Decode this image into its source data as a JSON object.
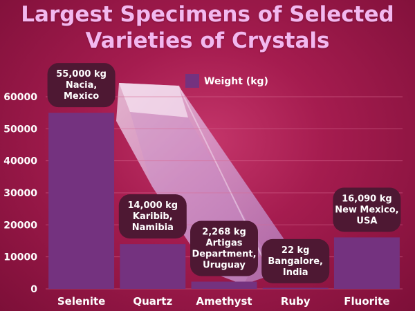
{
  "chart_data": {
    "type": "bar",
    "title": "Largest Specimens of Selected\nVarieties of Crystals",
    "categories": [
      "Selenite",
      "Quartz",
      "Amethyst",
      "Ruby",
      "Fluorite"
    ],
    "series": [
      {
        "name": "Weight (kg)",
        "values": [
          55000,
          14000,
          2268,
          22,
          16090
        ]
      }
    ],
    "data_labels": [
      [
        "55,000 kg",
        "Nacia,",
        "Mexico"
      ],
      [
        "14,000 kg",
        "Karibib,",
        "Namibia"
      ],
      [
        "2,268 kg",
        "Artigas",
        "Department,",
        "Uruguay"
      ],
      [
        "22 kg",
        "Bangalore,",
        "India"
      ],
      [
        "16,090 kg",
        "New Mexico,",
        "USA"
      ]
    ],
    "y_ticks": [
      "0",
      "10000",
      "20000",
      "30000",
      "40000",
      "50000",
      "60000"
    ],
    "ylim": [
      0,
      60000
    ],
    "grid": true,
    "legend_position": "top"
  },
  "colors": {
    "bar": "#74327f",
    "label_box": "#4e1833",
    "grid": "#d86a92"
  }
}
